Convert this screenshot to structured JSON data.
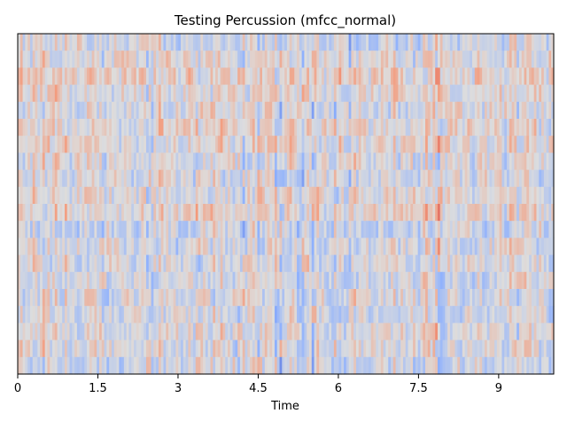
{
  "chart_data": {
    "type": "heatmap",
    "title": "Testing Percussion (mfcc_normal)",
    "xlabel": "Time",
    "ylabel": "",
    "xlim": [
      0,
      10.03
    ],
    "x_ticks": [
      "0",
      "1.5",
      "3",
      "4.5",
      "6",
      "7.5",
      "9"
    ],
    "x_tick_values": [
      0,
      1.5,
      3,
      4.5,
      6,
      7.5,
      9
    ],
    "n_coefficients": 20,
    "n_frames": 217,
    "colormap": "coolwarm",
    "value_range": [
      -1,
      1
    ],
    "y_ticks": [],
    "grid": false,
    "legend": "none"
  }
}
